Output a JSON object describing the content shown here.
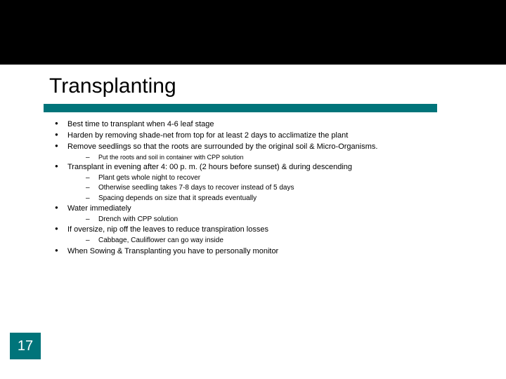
{
  "colors": {
    "black": "#000000",
    "teal": "#00747a",
    "white": "#ffffff"
  },
  "title": "Transplanting",
  "page_number": "17",
  "bullets": [
    {
      "text": "Best time to transplant when 4-6 leaf stage"
    },
    {
      "text": "Harden by removing shade-net from top for at least 2 days to acclimatize the plant"
    },
    {
      "text": "Remove seedlings so that the roots are surrounded by the original soil & Micro-Organisms.",
      "sub_small": [
        "Put the roots and soil in container with CPP solution"
      ]
    },
    {
      "text": "Transplant in evening after 4: 00 p. m. (2 hours before sunset) & during descending",
      "sub": [
        "Plant gets whole night to recover",
        "Otherwise seedling takes 7-8 days to recover instead of 5 days",
        "Spacing depends on size that it spreads eventually"
      ]
    },
    {
      "text": "Water immediately",
      "sub": [
        "Drench with CPP solution"
      ]
    },
    {
      "text": "If oversize, nip off  the leaves to reduce transpiration losses",
      "sub": [
        "Cabbage, Cauliflower can go way inside"
      ]
    },
    {
      "text": " When Sowing & Transplanting you have to personally monitor"
    }
  ]
}
